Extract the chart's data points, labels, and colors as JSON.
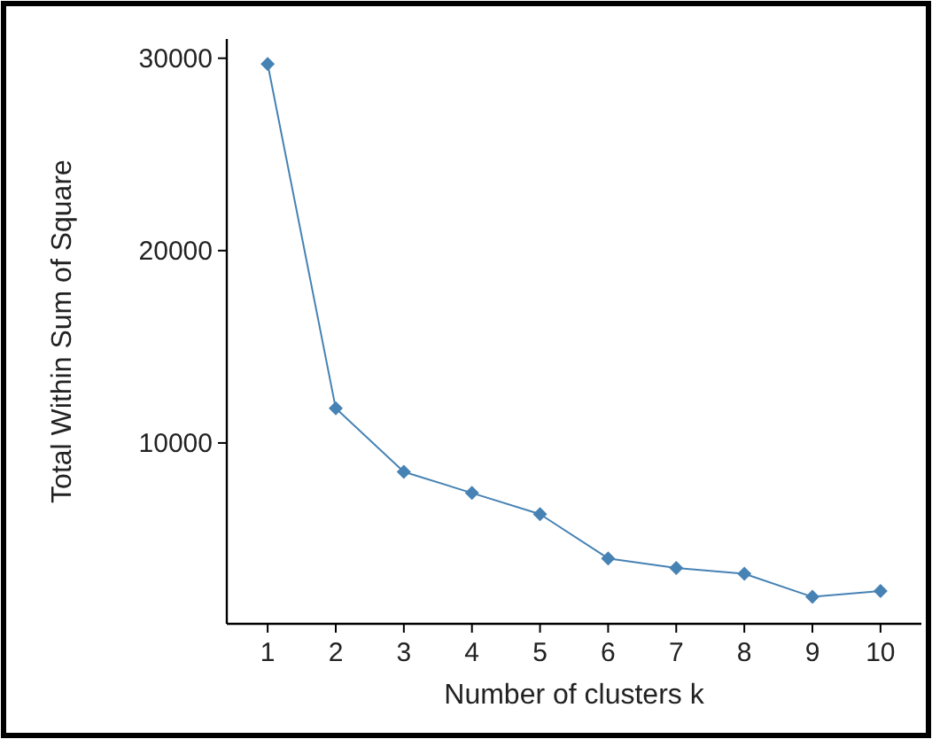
{
  "chart_data": {
    "type": "line",
    "xlabel": "Number of clusters k",
    "ylabel": "Total Within Sum of Square",
    "x": [
      1,
      2,
      3,
      4,
      5,
      6,
      7,
      8,
      9,
      10
    ],
    "series": [
      {
        "color": "#4682b4",
        "values": [
          29700,
          11800,
          8500,
          7400,
          6300,
          4000,
          3500,
          3200,
          2000,
          2300
        ]
      }
    ],
    "xlim": [
      0.4,
      10.6
    ],
    "xticks": [
      1,
      2,
      3,
      4,
      5,
      6,
      7,
      8,
      9,
      10
    ],
    "ylim": [
      600,
      31000
    ],
    "yticks": [
      10000,
      20000,
      30000
    ],
    "grid": false,
    "marker": "diamond",
    "line_style": "solid"
  }
}
